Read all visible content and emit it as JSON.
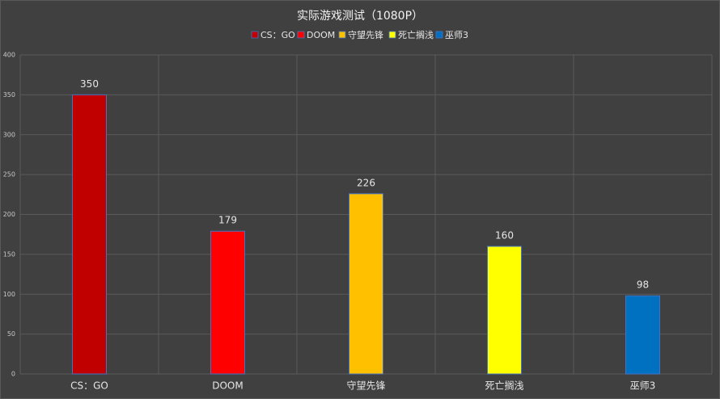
{
  "chart_data": {
    "type": "bar",
    "title": "实际游戏测试（1080P）",
    "categories": [
      "CS：GO",
      "DOOM",
      "守望先锋",
      "死亡搁浅",
      "巫师3"
    ],
    "series": [
      {
        "name": "CS：GO",
        "color": "#c00000",
        "values": [
          350,
          null,
          null,
          null,
          null
        ]
      },
      {
        "name": "DOOM",
        "color": "#ff0000",
        "values": [
          null,
          179,
          null,
          null,
          null
        ]
      },
      {
        "name": "守望先锋",
        "color": "#ffc000",
        "values": [
          null,
          null,
          226,
          null,
          null
        ]
      },
      {
        "name": "死亡搁浅",
        "color": "#ffff00",
        "values": [
          null,
          null,
          null,
          160,
          null
        ]
      },
      {
        "name": "巫师3",
        "color": "#0070c0",
        "values": [
          null,
          null,
          null,
          null,
          98
        ]
      }
    ],
    "ylim": [
      0,
      400
    ],
    "yticks": [
      0,
      50,
      100,
      150,
      200,
      250,
      300,
      350,
      400
    ],
    "grid": true,
    "legend": "top"
  }
}
